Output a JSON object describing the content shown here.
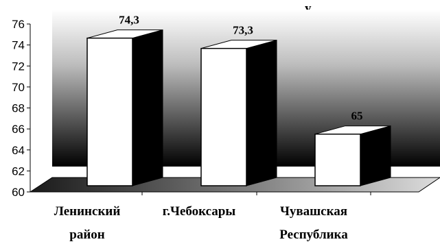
{
  "chart_data": {
    "type": "bar",
    "title_fragment": "у",
    "categories": [
      [
        "Ленинский",
        "район"
      ],
      [
        "г.Чебоксары"
      ],
      [
        "Чувашская",
        "Республика"
      ]
    ],
    "values": [
      74.3,
      73.3,
      65
    ],
    "data_labels": [
      "74,3",
      "73,3",
      "65"
    ],
    "ylim": [
      60,
      76
    ],
    "yticks": [
      "60",
      "62",
      "64",
      "66",
      "68",
      "70",
      "72",
      "74",
      "76"
    ],
    "style": "3d-column",
    "bar_front_color": "#ffffff",
    "bar_side_color": "#000000",
    "wall_gradient": [
      "#ffffff",
      "#000000"
    ],
    "grid": false
  }
}
